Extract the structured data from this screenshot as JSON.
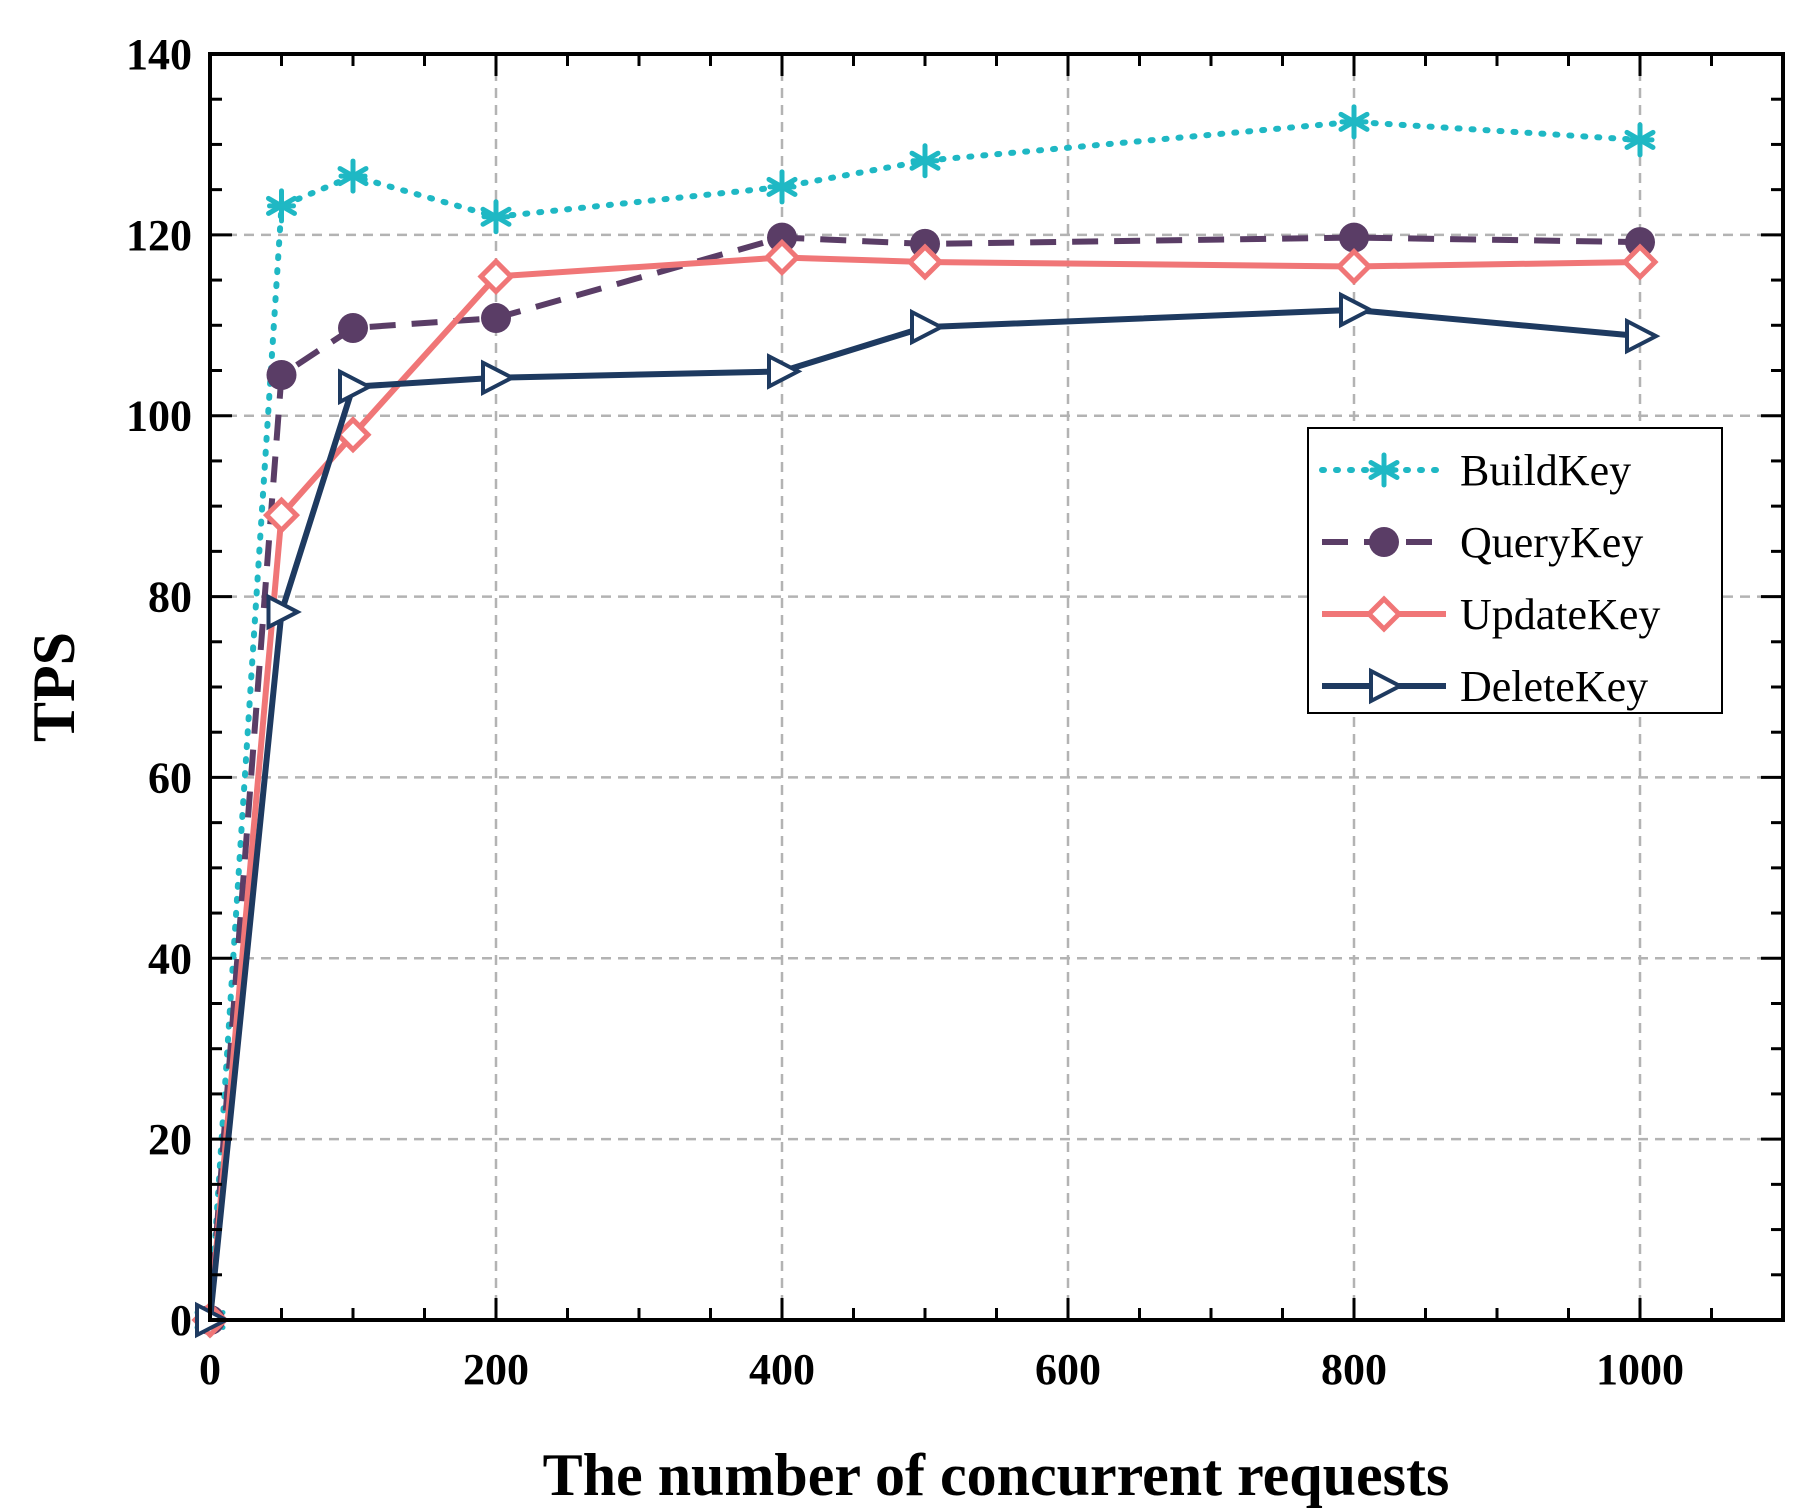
{
  "chart_data": {
    "type": "line",
    "title": "",
    "xlabel": "The number of concurrent requests",
    "ylabel": "TPS",
    "xlim": [
      0,
      1100
    ],
    "ylim": [
      0,
      140
    ],
    "xticks": [
      0,
      200,
      400,
      600,
      800,
      1000
    ],
    "yticks": [
      0,
      20,
      40,
      60,
      80,
      100,
      120,
      140
    ],
    "x_minor_step": 50,
    "y_minor_step": 5,
    "grid": true,
    "legend_position": "right-middle",
    "x": [
      0,
      50,
      100,
      200,
      400,
      500,
      800,
      1000
    ],
    "series": [
      {
        "name": "BuildKey",
        "color": "#1fb8c4",
        "line_style": "dotted",
        "marker": "asterisk",
        "values": [
          0,
          123.2,
          126.5,
          122,
          125.3,
          128.2,
          132.5,
          130.5
        ]
      },
      {
        "name": "QueryKey",
        "color": "#5a3d66",
        "line_style": "dashed",
        "marker": "circle",
        "values": [
          0,
          104.5,
          109.7,
          110.8,
          119.7,
          119,
          119.7,
          119.2
        ]
      },
      {
        "name": "UpdateKey",
        "color": "#f07677",
        "line_style": "solid",
        "marker": "diamond",
        "values": [
          0,
          89,
          97.9,
          115.4,
          117.5,
          117,
          116.5,
          117
        ]
      },
      {
        "name": "DeleteKey",
        "color": "#1e3a60",
        "line_style": "solid",
        "marker": "triangle-right",
        "values": [
          0,
          78.3,
          103.2,
          104.2,
          104.9,
          109.8,
          111.7,
          108.8
        ]
      }
    ]
  }
}
